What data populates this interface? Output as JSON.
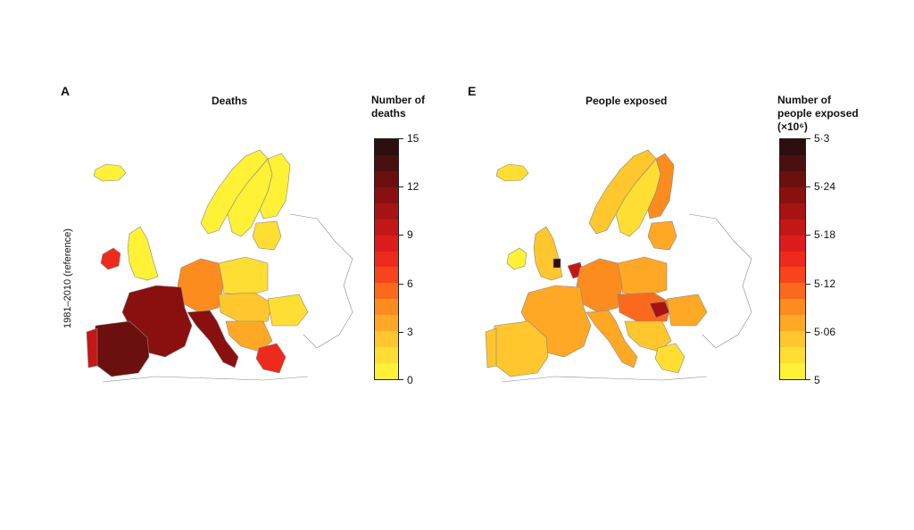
{
  "panels": [
    {
      "id": "A",
      "letter": "A",
      "title": "Deaths",
      "row_label": "1981–2010 (reference)",
      "legend_title_lines": [
        "Number of",
        "deaths"
      ],
      "legend_ticks": [
        "15",
        "12",
        "9",
        "6",
        "3",
        "0"
      ],
      "legend_colors": [
        "#2d0e0e",
        "#4a1010",
        "#6b0f0f",
        "#8a1010",
        "#a81313",
        "#c41717",
        "#dd1d1d",
        "#ee2a1c",
        "#f8441b",
        "#fb6a1c",
        "#fd8c1f",
        "#fea826",
        "#ffc62d",
        "#ffde33",
        "#fff136"
      ]
    },
    {
      "id": "E",
      "letter": "E",
      "title": "People exposed",
      "legend_title_lines": [
        "Number of",
        "people exposed",
        "(×10⁶)"
      ],
      "legend_ticks": [
        "5·3",
        "5·24",
        "5·18",
        "5·12",
        "5·06",
        "5"
      ],
      "legend_colors": [
        "#2d0e0e",
        "#4a1010",
        "#6b0f0f",
        "#8a1010",
        "#a81313",
        "#c41717",
        "#dd1d1d",
        "#ee2a1c",
        "#f8441b",
        "#fb6a1c",
        "#fd8c1f",
        "#fea826",
        "#ffc62d",
        "#ffde33",
        "#fff136"
      ]
    }
  ],
  "map_colors": {
    "land_default": "#ffffff",
    "land_outline": "#8a8a8a",
    "coast": "#666666"
  }
}
